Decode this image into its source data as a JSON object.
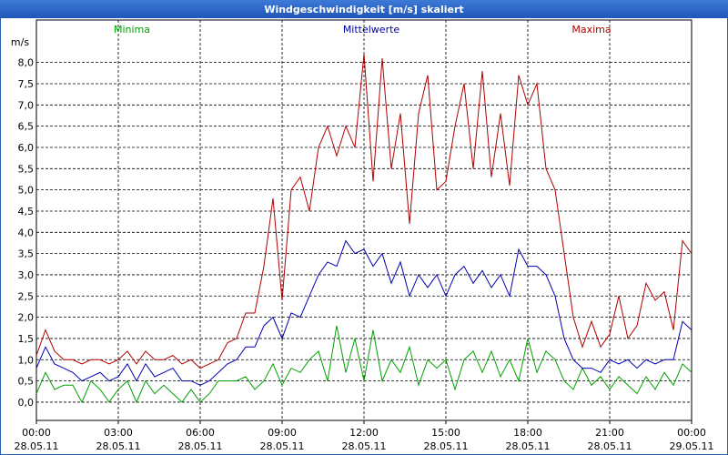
{
  "chart_data": {
    "type": "line",
    "title": "Windgeschwindigkeit [m/s] skaliert",
    "y_label": "m/s",
    "x": [
      0,
      20,
      40,
      60,
      80,
      100,
      120,
      140,
      160,
      180,
      200,
      220,
      240,
      260,
      280,
      300,
      320,
      340,
      360,
      380,
      400,
      420,
      440,
      460,
      480,
      500,
      520,
      540,
      560,
      580,
      600,
      620,
      640,
      660,
      680,
      700,
      720,
      740,
      760,
      780,
      800,
      820,
      840,
      860,
      880,
      900,
      920,
      940,
      960,
      980,
      1000,
      1020,
      1040,
      1060,
      1080,
      1100,
      1120,
      1140,
      1160,
      1180,
      1200,
      1220,
      1240,
      1260,
      1280,
      1300,
      1320,
      1340,
      1360,
      1380,
      1400,
      1420,
      1440
    ],
    "xlim": [
      0,
      1440
    ],
    "xticks": [
      {
        "value": 0,
        "label": "00:00 28.05.11"
      },
      {
        "value": 180,
        "label": "03:00 28.05.11"
      },
      {
        "value": 360,
        "label": "06:00 28.05.11"
      },
      {
        "value": 540,
        "label": "09:00 28.05.11"
      },
      {
        "value": 720,
        "label": "12:00 28.05.11"
      },
      {
        "value": 900,
        "label": "15:00 28.05.11"
      },
      {
        "value": 1080,
        "label": "18:00 28.05.11"
      },
      {
        "value": 1260,
        "label": "21:00 28.05.11"
      },
      {
        "value": 1440,
        "label": "00:00 29.05.11"
      }
    ],
    "ylim": [
      -0.43,
      9.0
    ],
    "yticks": [
      {
        "value": 0,
        "label": "0,0"
      },
      {
        "value": 0.5,
        "label": "0,5"
      },
      {
        "value": 1,
        "label": "1,0"
      },
      {
        "value": 1.5,
        "label": "1,5"
      },
      {
        "value": 2,
        "label": "2,0"
      },
      {
        "value": 2.5,
        "label": "2,5"
      },
      {
        "value": 3,
        "label": "3,0"
      },
      {
        "value": 3.5,
        "label": "3,5"
      },
      {
        "value": 4,
        "label": "4,0"
      },
      {
        "value": 4.5,
        "label": "4,5"
      },
      {
        "value": 5,
        "label": "5,0"
      },
      {
        "value": 5.5,
        "label": "5,5"
      },
      {
        "value": 6,
        "label": "6,0"
      },
      {
        "value": 6.5,
        "label": "6,5"
      },
      {
        "value": 7,
        "label": "7,0"
      },
      {
        "value": 7.5,
        "label": "7,5"
      },
      {
        "value": 8,
        "label": "8,0"
      }
    ],
    "grid": true,
    "series": [
      {
        "name": "Minima",
        "color": "#00a000",
        "values": [
          0.2,
          0.7,
          0.3,
          0.4,
          0.4,
          0.0,
          0.5,
          0.3,
          0.0,
          0.3,
          0.5,
          0.0,
          0.5,
          0.2,
          0.4,
          0.2,
          0.0,
          0.3,
          0.0,
          0.2,
          0.5,
          0.5,
          0.5,
          0.6,
          0.3,
          0.5,
          0.9,
          0.4,
          0.8,
          0.7,
          1.0,
          1.2,
          0.5,
          1.8,
          0.7,
          1.5,
          0.5,
          1.7,
          0.5,
          1.0,
          0.7,
          1.3,
          0.4,
          1.0,
          0.8,
          1.0,
          0.3,
          1.0,
          1.2,
          0.7,
          1.2,
          0.6,
          1.0,
          0.5,
          1.5,
          0.7,
          1.2,
          1.0,
          0.5,
          0.3,
          0.8,
          0.4,
          0.6,
          0.3,
          0.6,
          0.4,
          0.2,
          0.6,
          0.3,
          0.7,
          0.4,
          0.9,
          0.7
        ]
      },
      {
        "name": "Mittelwerte",
        "color": "#0000b0",
        "values": [
          0.8,
          1.3,
          0.9,
          0.8,
          0.7,
          0.5,
          0.6,
          0.7,
          0.5,
          0.6,
          0.9,
          0.5,
          0.9,
          0.6,
          0.7,
          0.8,
          0.5,
          0.5,
          0.4,
          0.5,
          0.7,
          0.9,
          1.0,
          1.3,
          1.3,
          1.8,
          2.0,
          1.5,
          2.1,
          2.0,
          2.5,
          3.0,
          3.3,
          3.2,
          3.8,
          3.5,
          3.6,
          3.2,
          3.5,
          2.8,
          3.3,
          2.5,
          3.0,
          2.7,
          3.0,
          2.5,
          3.0,
          3.2,
          2.8,
          3.1,
          2.7,
          3.0,
          2.5,
          3.6,
          3.2,
          3.2,
          3.0,
          2.5,
          1.5,
          1.0,
          0.8,
          0.8,
          0.7,
          1.0,
          0.9,
          1.0,
          0.8,
          1.0,
          0.9,
          1.0,
          1.0,
          1.9,
          1.7
        ]
      },
      {
        "name": "Maxima",
        "color": "#b00000",
        "values": [
          1.1,
          1.7,
          1.2,
          1.0,
          1.0,
          0.9,
          1.0,
          1.0,
          0.9,
          1.0,
          1.2,
          0.9,
          1.2,
          1.0,
          1.0,
          1.1,
          0.9,
          1.0,
          0.8,
          0.9,
          1.0,
          1.4,
          1.5,
          2.1,
          2.1,
          3.2,
          4.8,
          2.4,
          5.0,
          5.3,
          4.5,
          6.0,
          6.5,
          5.8,
          6.5,
          6.0,
          8.2,
          5.2,
          8.1,
          5.5,
          6.8,
          4.2,
          6.8,
          7.7,
          5.0,
          5.2,
          6.5,
          7.5,
          5.5,
          7.8,
          5.3,
          6.8,
          5.1,
          7.7,
          7.0,
          7.5,
          5.5,
          5.0,
          3.5,
          2.0,
          1.3,
          1.9,
          1.3,
          1.6,
          2.5,
          1.5,
          1.8,
          2.8,
          2.4,
          2.6,
          1.7,
          3.8,
          3.5
        ]
      }
    ]
  }
}
